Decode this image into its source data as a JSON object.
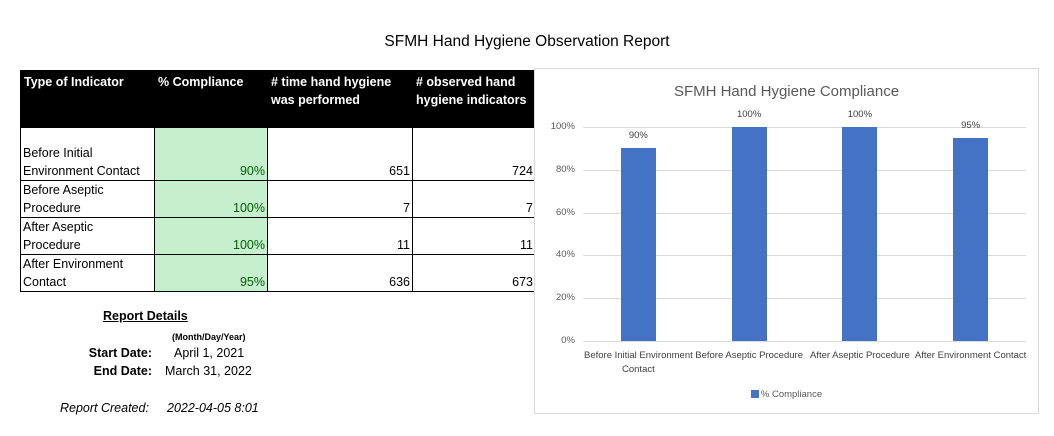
{
  "report": {
    "title": "SFMH Hand Hygiene Observation Report"
  },
  "table": {
    "headers": [
      "Type of Indicator",
      "% Compliance",
      "# time hand hygiene was performed",
      "# observed hand hygiene indicators"
    ],
    "rows": [
      {
        "indicator": "Before Initial Environment Contact",
        "compliance": "90%",
        "performed": "651",
        "observed": "724"
      },
      {
        "indicator": "Before Aseptic Procedure",
        "compliance": "100%",
        "performed": "7",
        "observed": "7"
      },
      {
        "indicator": "After Aseptic Procedure",
        "compliance": "100%",
        "performed": "11",
        "observed": "11"
      },
      {
        "indicator": "After Environment Contact",
        "compliance": "95%",
        "performed": "636",
        "observed": "673"
      }
    ]
  },
  "details": {
    "heading": "Report Details",
    "format_note": "(Month/Day/Year)",
    "start_label": "Start Date:",
    "start_value": "April 1, 2021",
    "end_label": "End Date:",
    "end_value": "March 31, 2022",
    "created_label": "Report Created:",
    "created_value": "2022-04-05 8:01"
  },
  "colors": {
    "bar": "#4472c4",
    "compliance_fill": "#c6efce",
    "compliance_text": "#006100",
    "header_bg": "#000000"
  },
  "chart_data": {
    "type": "bar",
    "title": "SFMH Hand Hygiene Compliance",
    "categories": [
      "Before Initial Environment Contact",
      "Before Aseptic Procedure",
      "After Aseptic Procedure",
      "After Environment Contact"
    ],
    "series": [
      {
        "name": "% Compliance",
        "values": [
          90,
          100,
          100,
          95
        ]
      }
    ],
    "data_labels": [
      "90%",
      "100%",
      "100%",
      "95%"
    ],
    "yticks": [
      "0%",
      "20%",
      "40%",
      "60%",
      "80%",
      "100%"
    ],
    "ylim": [
      0,
      100
    ],
    "xlabel": "",
    "ylabel": "",
    "grid": true,
    "legend_position": "bottom"
  }
}
